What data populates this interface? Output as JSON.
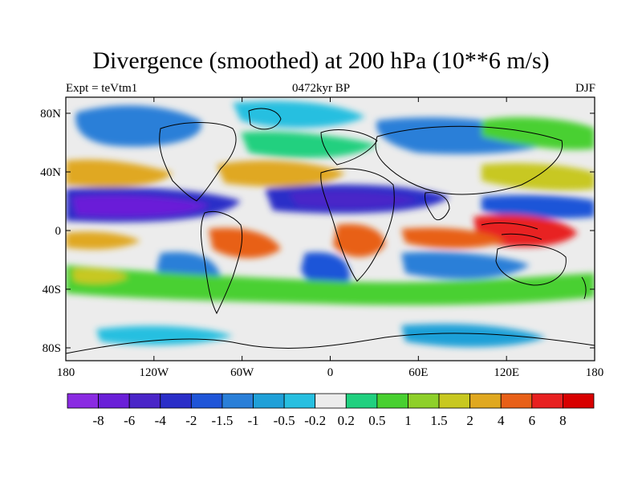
{
  "header": {
    "title": "Divergence (smoothed) at 200 hPa (10**6 m/s)",
    "left_label": "Expt = teVtm1",
    "center_label": "0472kyr BP",
    "right_label": "DJF"
  },
  "axes": {
    "x_ticks": [
      "180",
      "120W",
      "60W",
      "0",
      "60E",
      "120E",
      "180"
    ],
    "y_ticks": [
      "80N",
      "40N",
      "0",
      "40S",
      "80S"
    ]
  },
  "colorbar": {
    "labels": [
      "-8",
      "-6",
      "-4",
      "-2",
      "-1.5",
      "-1",
      "-0.5",
      "-0.2",
      "0.2",
      "0.5",
      "1",
      "1.5",
      "2",
      "4",
      "6",
      "8"
    ],
    "colors": [
      "#8a2be2",
      "#6a1fd8",
      "#4a25c8",
      "#2a2ec8",
      "#1f55d8",
      "#2a7fd8",
      "#1fa0d8",
      "#27bfe0",
      "#ececec",
      "#20d07f",
      "#48d030",
      "#8ed02a",
      "#c8c820",
      "#e0a820",
      "#e86018",
      "#e82020",
      "#d80000"
    ]
  },
  "map_colors": {
    "strong_neg": "#6a1fd8",
    "neg4": "#4a25c8",
    "neg2": "#2a2ec8",
    "neg15": "#1f55d8",
    "neg1": "#2a7fd8",
    "neg05": "#1fa0d8",
    "neg02": "#27bfe0",
    "neutral": "#ececec",
    "pos05": "#20d07f",
    "pos1": "#48d030",
    "pos15": "#8ed02a",
    "pos2": "#c8c820",
    "pos4": "#e0a820",
    "pos6": "#e86018",
    "pos8": "#e82020",
    "coast": "#000000"
  }
}
